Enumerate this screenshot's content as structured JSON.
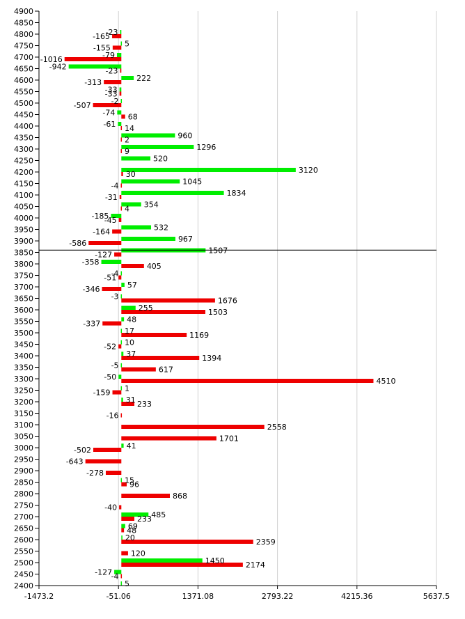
{
  "chart_data": {
    "type": "bar",
    "orientation": "horizontal",
    "grid": true,
    "xlim": [
      -1473.2,
      5637.5
    ],
    "x_ticks": [
      "-1473.2",
      "-51.06",
      "1371.08",
      "2793.22",
      "4215.36",
      "5637.5"
    ],
    "x_tick_values": [
      -1473.2,
      -51.06,
      1371.08,
      2793.22,
      4215.36,
      5637.5
    ],
    "ylim": [
      2400,
      4900
    ],
    "y_ticks": [
      4900,
      4850,
      4800,
      4750,
      4700,
      4650,
      4600,
      4550,
      4500,
      4450,
      4400,
      4350,
      4300,
      4250,
      4200,
      4150,
      4100,
      4050,
      4000,
      3950,
      3900,
      3850,
      3800,
      3750,
      3700,
      3650,
      3600,
      3550,
      3500,
      3450,
      3400,
      3350,
      3300,
      3250,
      3200,
      3150,
      3100,
      3050,
      3000,
      2950,
      2900,
      2850,
      2800,
      2750,
      2700,
      2650,
      2600,
      2550,
      2500,
      2450,
      2400
    ],
    "reference_line_y": 3860,
    "colors": {
      "green": "#00ee00",
      "red": "#ee0000",
      "grid": "#d0d0d0",
      "axis": "#000000"
    },
    "series": [
      {
        "color": "green",
        "values": [
          {
            "y": 4800,
            "v": -23
          },
          {
            "y": 4750,
            "v": 5
          },
          {
            "y": 4700,
            "v": -79
          },
          {
            "y": 4650,
            "v": -942
          },
          {
            "y": 4600,
            "v": 222
          },
          {
            "y": 4550,
            "v": -33
          },
          {
            "y": 4500,
            "v": -2
          },
          {
            "y": 4450,
            "v": -74
          },
          {
            "y": 4400,
            "v": -61
          },
          {
            "y": 4350,
            "v": 960
          },
          {
            "y": 4300,
            "v": 1296
          },
          {
            "y": 4250,
            "v": 520
          },
          {
            "y": 4200,
            "v": 3120
          },
          {
            "y": 4150,
            "v": 1045
          },
          {
            "y": 4100,
            "v": 1834
          },
          {
            "y": 4050,
            "v": 354
          },
          {
            "y": 4000,
            "v": -185
          },
          {
            "y": 3950,
            "v": 532
          },
          {
            "y": 3900,
            "v": 967
          },
          {
            "y": 3850,
            "v": 1507
          },
          {
            "y": 3800,
            "v": -358
          },
          {
            "y": 3750,
            "v": -4
          },
          {
            "y": 3700,
            "v": 57
          },
          {
            "y": 3650,
            "v": -3
          },
          {
            "y": 3600,
            "v": 255
          },
          {
            "y": 3550,
            "v": 48
          },
          {
            "y": 3500,
            "v": 17
          },
          {
            "y": 3450,
            "v": 10
          },
          {
            "y": 3400,
            "v": 37
          },
          {
            "y": 3350,
            "v": -5
          },
          {
            "y": 3300,
            "v": -50
          },
          {
            "y": 3250,
            "v": 1
          },
          {
            "y": 3200,
            "v": 31
          },
          {
            "y": 3000,
            "v": 41
          },
          {
            "y": 2850,
            "v": 15
          },
          {
            "y": 2700,
            "v": 485
          },
          {
            "y": 2650,
            "v": 69
          },
          {
            "y": 2600,
            "v": 20
          },
          {
            "y": 2500,
            "v": 1450
          },
          {
            "y": 2450,
            "v": -127
          },
          {
            "y": 2400,
            "v": 5
          }
        ]
      },
      {
        "color": "red",
        "values": [
          {
            "y": 4800,
            "v": -165
          },
          {
            "y": 4750,
            "v": -155
          },
          {
            "y": 4700,
            "v": -1016
          },
          {
            "y": 4650,
            "v": -23
          },
          {
            "y": 4600,
            "v": -313
          },
          {
            "y": 4550,
            "v": -33
          },
          {
            "y": 4500,
            "v": -507
          },
          {
            "y": 4450,
            "v": 68
          },
          {
            "y": 4400,
            "v": 14
          },
          {
            "y": 4350,
            "v": 2
          },
          {
            "y": 4300,
            "v": 9
          },
          {
            "y": 4200,
            "v": 30
          },
          {
            "y": 4150,
            "v": -4
          },
          {
            "y": 4100,
            "v": -31
          },
          {
            "y": 4050,
            "v": 4
          },
          {
            "y": 4000,
            "v": -45
          },
          {
            "y": 3950,
            "v": -164
          },
          {
            "y": 3900,
            "v": -586
          },
          {
            "y": 3850,
            "v": -127
          },
          {
            "y": 3800,
            "v": 405
          },
          {
            "y": 3750,
            "v": -51
          },
          {
            "y": 3700,
            "v": -346
          },
          {
            "y": 3650,
            "v": 1676
          },
          {
            "y": 3600,
            "v": 1503
          },
          {
            "y": 3550,
            "v": -337
          },
          {
            "y": 3500,
            "v": 1169
          },
          {
            "y": 3450,
            "v": -52
          },
          {
            "y": 3400,
            "v": 1394
          },
          {
            "y": 3350,
            "v": 617
          },
          {
            "y": 3300,
            "v": 4510
          },
          {
            "y": 3250,
            "v": -159
          },
          {
            "y": 3200,
            "v": 233
          },
          {
            "y": 3150,
            "v": -16
          },
          {
            "y": 3100,
            "v": 2558
          },
          {
            "y": 3050,
            "v": 1701
          },
          {
            "y": 3000,
            "v": -502
          },
          {
            "y": 2950,
            "v": -643
          },
          {
            "y": 2900,
            "v": -278
          },
          {
            "y": 2850,
            "v": 96
          },
          {
            "y": 2800,
            "v": 868
          },
          {
            "y": 2750,
            "v": -40
          },
          {
            "y": 2700,
            "v": 233
          },
          {
            "y": 2650,
            "v": 48
          },
          {
            "y": 2600,
            "v": 2359
          },
          {
            "y": 2550,
            "v": 120
          },
          {
            "y": 2500,
            "v": 2174
          },
          {
            "y": 2450,
            "v": -4
          }
        ]
      }
    ]
  }
}
